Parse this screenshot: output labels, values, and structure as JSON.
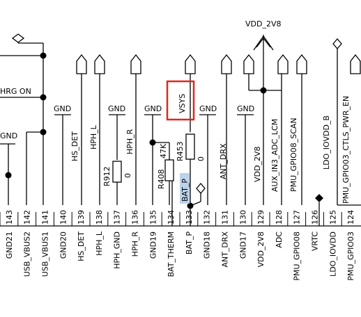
{
  "power_net": "VDD_2V8",
  "left_net": "HRG ON",
  "highlight_label": "VSYS",
  "highlight_color": "#e0271d",
  "selection_color": "#bcd3ea",
  "gnd_label": "GND",
  "resistors": [
    {
      "ref": "R912",
      "value": "0"
    },
    {
      "ref": "R408",
      "value": "47K"
    },
    {
      "ref": "R453",
      "value": "0"
    }
  ],
  "selected_net": "BAT_P",
  "upper_nets": [
    "HS_DET",
    "HPH_L",
    "HPH_R",
    "ANT_DRX",
    "VDD_2V8",
    "AUX_IN3_ADC_LCM",
    "PMU_GPIO08_SCAN",
    "LDO_IOVDD_B",
    "PMU_GPIO03_CTLS_PWR_EN"
  ],
  "pin_numbers": [
    "143",
    "142",
    "141",
    "140",
    "139",
    "138",
    "137",
    "136",
    "135",
    "134",
    "133",
    "132",
    "131",
    "130",
    "129",
    "128",
    "127",
    "126",
    "125",
    "124"
  ],
  "pin_names": [
    "GND21",
    "USB_VBUS2",
    "USB_VBUS1",
    "GND20",
    "HS_DET",
    "HPH_L",
    "HPH_GND",
    "HPH_R",
    "GND19",
    "BAT_THERM",
    "BAT_P",
    "GND18",
    "ANT_DRX",
    "GND17",
    "VDD_2V8",
    "ADC",
    "PMU_GPIO08",
    "VRTC",
    "LDO_IOVDD",
    "PMU_GPIO03"
  ]
}
